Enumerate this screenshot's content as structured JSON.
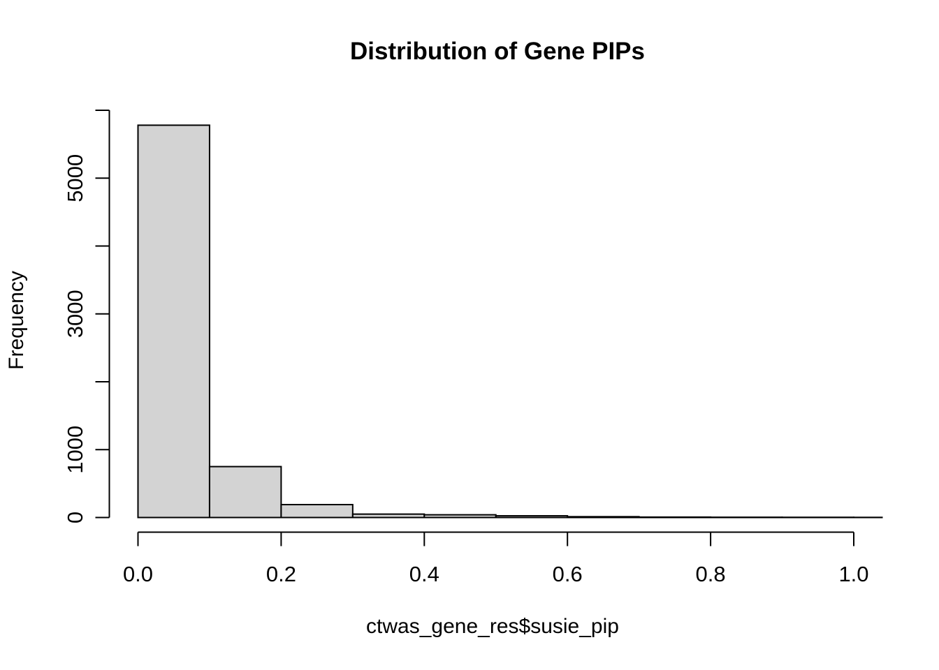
{
  "chart_data": {
    "type": "bar",
    "subtype": "histogram",
    "title": "Distribution of Gene PIPs",
    "xlabel": "ctwas_gene_res$susie_pip",
    "ylabel": "Frequency",
    "grid": false,
    "legend": null,
    "background": "#ffffff",
    "bar_fill": "#d3d3d3",
    "bar_stroke": "#000000",
    "axis_color": "#000000",
    "xlim": [
      0,
      1.04
    ],
    "ylim": [
      0,
      6000
    ],
    "breaks": [
      0,
      0.1,
      0.2,
      0.3,
      0.4,
      0.5,
      0.6,
      0.7,
      0.8,
      0.9,
      1.0,
      1.1
    ],
    "counts": [
      5780,
      750,
      190,
      50,
      40,
      25,
      12,
      6,
      4,
      3,
      2
    ],
    "x_ticks": [
      {
        "v": 0.0,
        "label": "0.0"
      },
      {
        "v": 0.2,
        "label": "0.2"
      },
      {
        "v": 0.4,
        "label": "0.4"
      },
      {
        "v": 0.6,
        "label": "0.6"
      },
      {
        "v": 0.8,
        "label": "0.8"
      },
      {
        "v": 1.0,
        "label": "1.0"
      }
    ],
    "y_ticks": [
      {
        "v": 0,
        "label": "0"
      },
      {
        "v": 1000,
        "label": "1000"
      },
      {
        "v": 2000,
        "label": ""
      },
      {
        "v": 3000,
        "label": "3000"
      },
      {
        "v": 4000,
        "label": ""
      },
      {
        "v": 5000,
        "label": "5000"
      },
      {
        "v": 6000,
        "label": ""
      }
    ]
  }
}
